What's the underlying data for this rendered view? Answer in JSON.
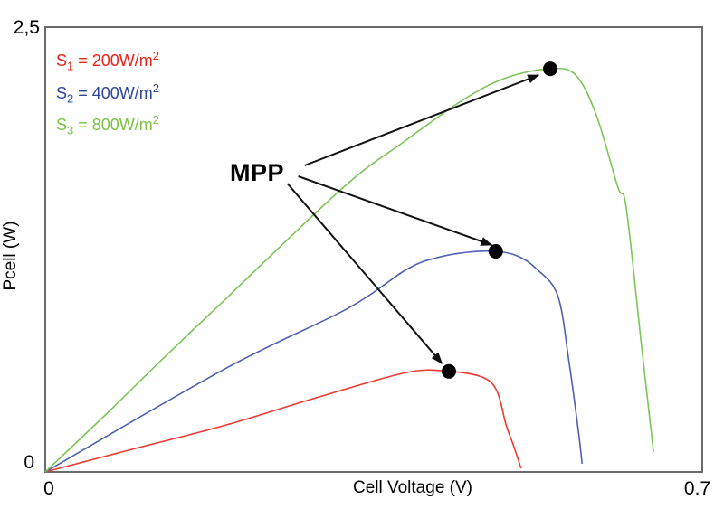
{
  "page": {
    "background": "#ffffff"
  },
  "chart_data": {
    "type": "line",
    "title": "",
    "xlabel": "Cell Voltage (V)",
    "ylabel": "Pcell (W)",
    "xlim": [
      0,
      0.7
    ],
    "ylim": [
      0,
      2.5
    ],
    "x_tick_labels": [
      "0",
      "0.7"
    ],
    "y_tick_labels": [
      "0",
      "2,5"
    ],
    "grid": false,
    "frame": true,
    "axis_color": "#6a6a6a",
    "legend_position": "top-left",
    "series": [
      {
        "name": "S1 = 200W/m2",
        "irradiance_W_m2": 200,
        "legend_parts": {
          "base": "S",
          "sub": "1",
          "mid": " = 200W/m",
          "sup": "2"
        },
        "legend_color": "#e8231c",
        "color": "#ed3a30",
        "points": [
          [
            0,
            0
          ],
          [
            0.096,
            0.132
          ],
          [
            0.193,
            0.264
          ],
          [
            0.289,
            0.417
          ],
          [
            0.385,
            0.559
          ],
          [
            0.43,
            0.565
          ],
          [
            0.465,
            0.534
          ],
          [
            0.481,
            0.457
          ],
          [
            0.491,
            0.264
          ],
          [
            0.499,
            0.147
          ],
          [
            0.507,
            0.02
          ]
        ],
        "mpp": {
          "V": 0.43,
          "W": 0.565
        },
        "Voc_V": 0.507
      },
      {
        "name": "S2 = 400W/m2",
        "irradiance_W_m2": 400,
        "legend_parts": {
          "base": "S",
          "sub": "2",
          "mid": " = 400W/m",
          "sup": "2"
        },
        "legend_color": "#2e459d",
        "color": "#4f5fb2",
        "points": [
          [
            0,
            0
          ],
          [
            0.193,
            0.584
          ],
          [
            0.321,
            0.915
          ],
          [
            0.385,
            1.138
          ],
          [
            0.417,
            1.204
          ],
          [
            0.45,
            1.235
          ],
          [
            0.48,
            1.24
          ],
          [
            0.503,
            1.214
          ],
          [
            0.523,
            1.143
          ],
          [
            0.546,
            0.991
          ],
          [
            0.558,
            0.62
          ],
          [
            0.568,
            0.229
          ],
          [
            0.572,
            0.046
          ]
        ],
        "mpp": {
          "V": 0.48,
          "W": 1.24
        },
        "Voc_V": 0.572
      },
      {
        "name": "S3 = 800W/m2",
        "irradiance_W_m2": 800,
        "legend_parts": {
          "base": "S",
          "sub": "3",
          "mid": " = 800W/m",
          "sup": "2"
        },
        "legend_color": "#7cc142",
        "color": "#7bc457",
        "points": [
          [
            0,
            0
          ],
          [
            0.065,
            0.325
          ],
          [
            0.128,
            0.65
          ],
          [
            0.193,
            0.976
          ],
          [
            0.318,
            1.601
          ],
          [
            0.382,
            1.855
          ],
          [
            0.446,
            2.094
          ],
          [
            0.491,
            2.215
          ],
          [
            0.538,
            2.266
          ],
          [
            0.565,
            2.231
          ],
          [
            0.587,
            2.007
          ],
          [
            0.61,
            1.601
          ],
          [
            0.619,
            1.484
          ],
          [
            0.635,
            0.722
          ],
          [
            0.648,
            0.112
          ]
        ],
        "mpp": {
          "V": 0.538,
          "W": 2.266
        },
        "Voc_V": 0.648
      }
    ],
    "annotation": {
      "label": "MPP",
      "marker_color": "#000000",
      "marker_radius_px": 8,
      "arrow_color": "#111111",
      "arrows": [
        {
          "from": [
            0.2763,
            1.7226
          ],
          "to": [
            0.5257,
            2.2307
          ]
        },
        {
          "from": [
            0.2696,
            1.6616
          ],
          "to": [
            0.4757,
            1.2754
          ]
        },
        {
          "from": [
            0.258,
            1.6209
          ],
          "to": [
            0.4227,
            0.6098
          ]
        }
      ]
    }
  }
}
